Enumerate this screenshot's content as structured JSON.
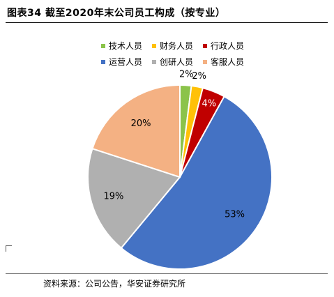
{
  "title": "图表34 截至2020年末公司员工构成（按专业）",
  "source": "资料来源：公司公告，华安证券研究所",
  "chart_data": {
    "type": "pie",
    "categories": [
      "技术人员",
      "财务人员",
      "行政人员",
      "运营人员",
      "创研人员",
      "客服人员"
    ],
    "values": [
      2,
      2,
      4,
      53,
      19,
      20
    ],
    "labels": [
      "2%",
      "2%",
      "4%",
      "53%",
      "19%",
      "20%"
    ],
    "colors": [
      "#8BC34A",
      "#FFC107",
      "#C00000",
      "#4472C4",
      "#B0B0B0",
      "#F4B183"
    ],
    "legend_position": "top"
  }
}
